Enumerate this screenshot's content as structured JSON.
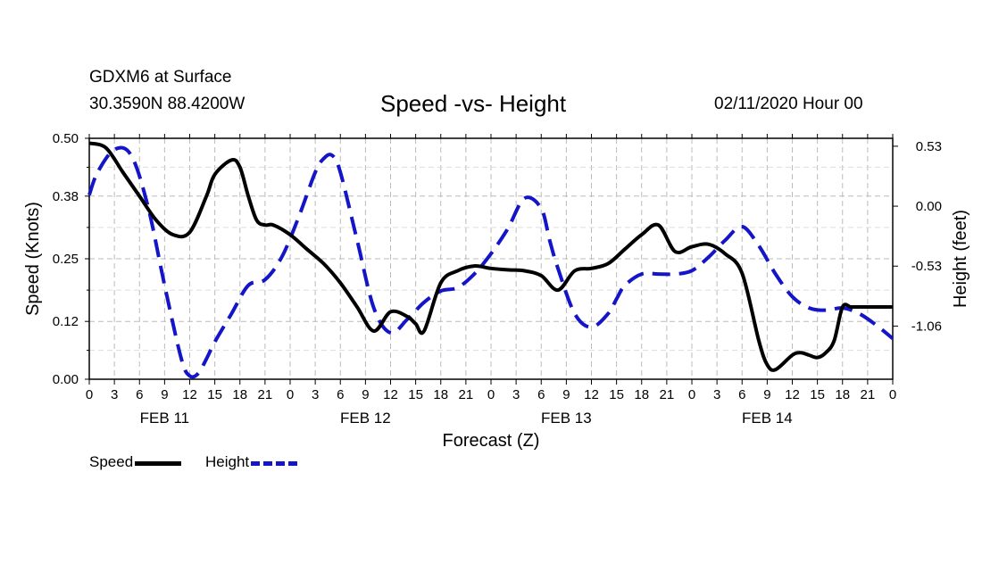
{
  "header": {
    "station": "GDXM6 at Surface",
    "coords": "30.3590N 88.4200W",
    "title": "Speed -vs- Height",
    "datetime": "02/11/2020 Hour 00"
  },
  "legend": {
    "speed": "Speed",
    "height": "Height"
  },
  "colors": {
    "speed": "#000000",
    "height": "#1414c8",
    "grid": "#bbbbbb"
  },
  "chart_data": {
    "type": "line",
    "title": "Speed -vs- Height",
    "xlabel": "Forecast (Z)",
    "ylabel_left": "Speed (Knots)",
    "ylabel_right": "Height (feet)",
    "x_range_hours": [
      0,
      96
    ],
    "x_tick_labels": [
      "0",
      "3",
      "6",
      "9",
      "12",
      "15",
      "18",
      "21",
      "0",
      "3",
      "6",
      "9",
      "12",
      "15",
      "18",
      "21",
      "0",
      "3",
      "6",
      "9",
      "12",
      "15",
      "18",
      "21",
      "0",
      "3",
      "6",
      "9",
      "12",
      "15",
      "18",
      "21",
      "0"
    ],
    "date_labels": [
      {
        "label": "FEB 11",
        "hour": 9
      },
      {
        "label": "FEB 12",
        "hour": 33
      },
      {
        "label": "FEB 13",
        "hour": 57
      },
      {
        "label": "FEB 14",
        "hour": 81
      }
    ],
    "left_axis": {
      "ylim": [
        0,
        0.5
      ],
      "ticks": [
        0.0,
        0.12,
        0.25,
        0.38,
        0.5
      ],
      "tick_labels": [
        "0.00",
        "0.12",
        "0.25",
        "0.38",
        "0.50"
      ]
    },
    "right_axis": {
      "ylim": [
        -1.53,
        0.6
      ],
      "ticks": [
        0.53,
        0.0,
        -0.53,
        -1.06
      ],
      "tick_labels": [
        "0.53",
        "0.00",
        "-0.53",
        "-1.06"
      ]
    },
    "series": [
      {
        "name": "Speed",
        "axis": "left",
        "style": "solid",
        "x": [
          0,
          2,
          4,
          6,
          8,
          10,
          12,
          14,
          15,
          17,
          18,
          19,
          20,
          21,
          22,
          24,
          26,
          28,
          30,
          32,
          34,
          36,
          38,
          39,
          40,
          42,
          44,
          46,
          48,
          50,
          52,
          54,
          56,
          58,
          60,
          62,
          64,
          66,
          68,
          70,
          72,
          74,
          76,
          78,
          80,
          81,
          82,
          84,
          85,
          86,
          87,
          88,
          89,
          90,
          91,
          92,
          93,
          94,
          95,
          96
        ],
        "y": [
          0.49,
          0.48,
          0.43,
          0.38,
          0.33,
          0.3,
          0.305,
          0.38,
          0.425,
          0.455,
          0.44,
          0.38,
          0.33,
          0.32,
          0.32,
          0.3,
          0.27,
          0.24,
          0.2,
          0.15,
          0.1,
          0.14,
          0.13,
          0.115,
          0.1,
          0.2,
          0.225,
          0.235,
          0.23,
          0.227,
          0.225,
          0.215,
          0.185,
          0.225,
          0.23,
          0.24,
          0.27,
          0.3,
          0.32,
          0.265,
          0.275,
          0.28,
          0.26,
          0.22,
          0.08,
          0.03,
          0.02,
          0.05,
          0.055,
          0.05,
          0.045,
          0.055,
          0.08,
          0.15,
          0.15,
          0.15,
          0.15,
          0.15,
          0.15,
          0.15
        ]
      },
      {
        "name": "Height",
        "axis": "right",
        "style": "dashed",
        "x": [
          0,
          1,
          3,
          5,
          7,
          9,
          11,
          12,
          13,
          14,
          15,
          17,
          19,
          21,
          23,
          25,
          27,
          28,
          29,
          30,
          32,
          34,
          36,
          38,
          40,
          42,
          44,
          46,
          48,
          50,
          52,
          54,
          55,
          56,
          58,
          60,
          62,
          63,
          64,
          66,
          68,
          70,
          72,
          74,
          76,
          78,
          80,
          82,
          84,
          86,
          88,
          90,
          92,
          94,
          96
        ],
        "y": [
          0.1,
          0.3,
          0.5,
          0.45,
          0.0,
          -0.7,
          -1.35,
          -1.5,
          -1.48,
          -1.35,
          -1.2,
          -0.95,
          -0.7,
          -0.65,
          -0.45,
          -0.1,
          0.3,
          0.42,
          0.45,
          0.3,
          -0.3,
          -0.9,
          -1.12,
          -1.0,
          -0.85,
          -0.75,
          -0.72,
          -0.6,
          -0.42,
          -0.2,
          0.07,
          -0.02,
          -0.3,
          -0.55,
          -0.95,
          -1.07,
          -0.95,
          -0.82,
          -0.7,
          -0.6,
          -0.6,
          -0.6,
          -0.57,
          -0.45,
          -0.3,
          -0.18,
          -0.35,
          -0.6,
          -0.8,
          -0.9,
          -0.92,
          -0.9,
          -0.95,
          -1.05,
          -1.17
        ]
      }
    ]
  }
}
